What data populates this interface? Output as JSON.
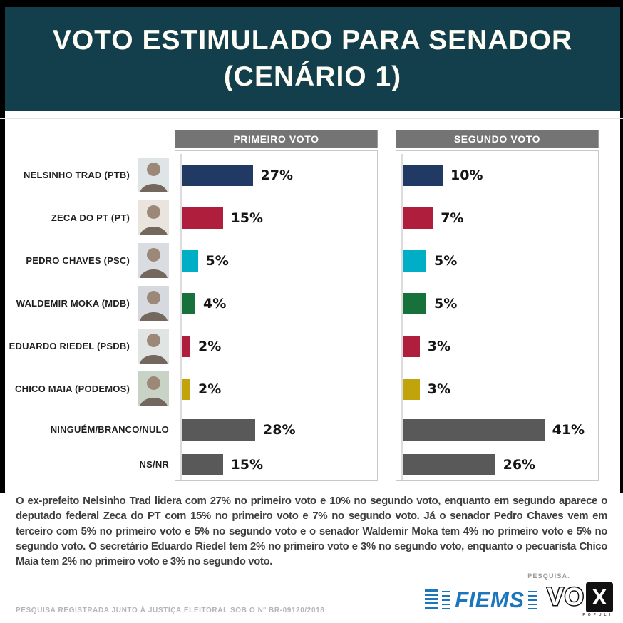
{
  "header": {
    "title_line1": "VOTO ESTIMULADO PARA SENADOR",
    "title_line2": "(CENÁRIO 1)"
  },
  "chart_data": {
    "type": "bar",
    "orientation": "horizontal",
    "title": "VOTO ESTIMULADO PARA SENADOR (CENÁRIO 1)",
    "unit": "%",
    "categories": [
      "NELSINHO TRAD (PTB)",
      "ZECA DO PT (PT)",
      "PEDRO CHAVES (PSC)",
      "WALDEMIR MOKA (MDB)",
      "EDUARDO RIEDEL (PSDB)",
      "CHICO MAIA (PODEMOS)",
      "NINGUÉM/BRANCO/NULO",
      "NS/NR"
    ],
    "series": [
      {
        "name": "PRIMEIRO VOTO",
        "values": [
          27,
          15,
          5,
          4,
          2,
          2,
          28,
          15
        ]
      },
      {
        "name": "SEGUNDO VOTO",
        "values": [
          10,
          7,
          5,
          5,
          3,
          3,
          41,
          26
        ]
      }
    ],
    "bar_colors": [
      "#203A64",
      "#B01E3E",
      "#00AFC5",
      "#17713A",
      "#B01E3E",
      "#C1A40B",
      "#595959",
      "#595959"
    ],
    "grid": false,
    "value_labels": "outside-right"
  },
  "candidates": [
    {
      "label": "NELSINHO TRAD (PTB)",
      "has_photo": true,
      "photo_bg": "#dfe4e6"
    },
    {
      "label": "ZECA DO PT (PT)",
      "has_photo": true,
      "photo_bg": "#e9e4de"
    },
    {
      "label": "PEDRO CHAVES (PSC)",
      "has_photo": true,
      "photo_bg": "#d9dde1"
    },
    {
      "label": "WALDEMIR MOKA (MDB)",
      "has_photo": true,
      "photo_bg": "#d6dade"
    },
    {
      "label": "EDUARDO RIEDEL (PSDB)",
      "has_photo": true,
      "photo_bg": "#e0e5e4"
    },
    {
      "label": "CHICO MAIA (PODEMOS)",
      "has_photo": true,
      "photo_bg": "#c9d3c5"
    },
    {
      "label": "NINGUÉM/BRANCO/NULO",
      "has_photo": false,
      "photo_bg": ""
    },
    {
      "label": "NS/NR",
      "has_photo": false,
      "photo_bg": ""
    }
  ],
  "summary": "O ex-prefeito Nelsinho Trad lidera com 27% no primeiro voto e 10% no segundo voto, enquanto em segundo aparece o deputado federal Zeca do PT com 15% no primeiro voto e 7% no segundo voto. Já o senador Pedro Chaves vem em terceiro com 5% no primeiro voto e 5% no segundo voto e o senador Waldemir Moka tem 4% no primeiro voto e 5% no segundo voto. O secretário Eduardo Riedel tem 2% no primeiro voto e 3% no segundo voto, enquanto o pecuarista Chico Maia tem 2% no primeiro voto e 3% no segundo voto.",
  "footer": {
    "registration": "PESQUISA REGISTRADA JUNTO À JUSTIÇA ELEITORAL SOB O Nº BR-09120/2018",
    "pesquisa_label": "PESQUISA.",
    "logos": {
      "fiems": "FIEMS",
      "vox_vo": "VO",
      "vox_x": "X",
      "vox_sub": "POPULI"
    }
  },
  "colors": {
    "header_bg": "#123F4B",
    "panel_header_bg": "#747474",
    "gray_bar": "#595959",
    "fiems_blue": "#1B76BC"
  }
}
